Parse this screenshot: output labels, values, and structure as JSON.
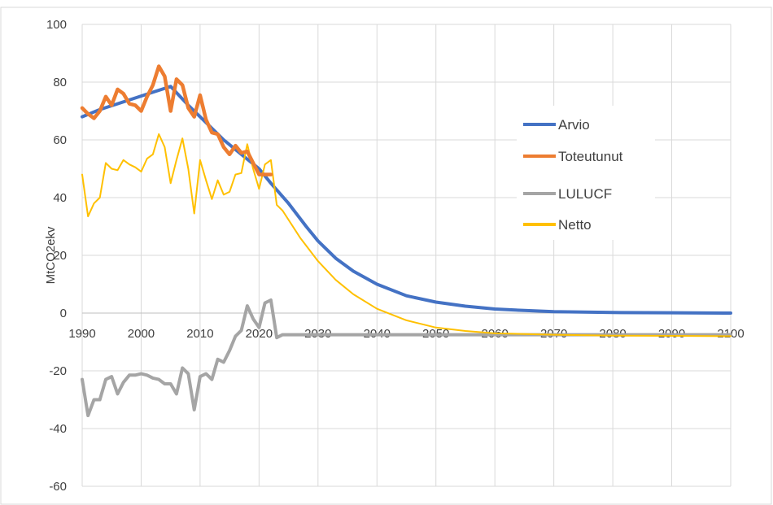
{
  "chart_data": {
    "type": "line",
    "title": "",
    "xlabel": "",
    "ylabel": "MtCO2ekv",
    "xlim": [
      1990,
      2100
    ],
    "ylim": [
      -60,
      100
    ],
    "x_ticks": [
      1990,
      2000,
      2010,
      2020,
      2030,
      2040,
      2050,
      2060,
      2070,
      2080,
      2090,
      2100
    ],
    "y_ticks": [
      -60,
      -40,
      -20,
      0,
      20,
      40,
      60,
      80,
      100
    ],
    "grid": true,
    "legend_position": "right",
    "series": [
      {
        "name": "Arvio",
        "color": "#4472C4",
        "points": [
          [
            1990,
            68
          ],
          [
            1993,
            70.5
          ],
          [
            1996,
            72.5
          ],
          [
            1999,
            74.5
          ],
          [
            2002,
            76.5
          ],
          [
            2005,
            78.5
          ],
          [
            2008,
            72
          ],
          [
            2011,
            66
          ],
          [
            2014,
            60
          ],
          [
            2017,
            55
          ],
          [
            2020,
            50
          ],
          [
            2022,
            45
          ],
          [
            2025,
            38
          ],
          [
            2028,
            30
          ],
          [
            2030,
            25
          ],
          [
            2033,
            19
          ],
          [
            2036,
            14.5
          ],
          [
            2040,
            10
          ],
          [
            2045,
            6
          ],
          [
            2050,
            3.8
          ],
          [
            2055,
            2.4
          ],
          [
            2060,
            1.4
          ],
          [
            2065,
            0.9
          ],
          [
            2070,
            0.5
          ],
          [
            2080,
            0.2
          ],
          [
            2090,
            0.1
          ],
          [
            2100,
            0
          ]
        ]
      },
      {
        "name": "Toteutunut",
        "color": "#ED7D31",
        "points": [
          [
            1990,
            71
          ],
          [
            1991,
            69
          ],
          [
            1992,
            67.5
          ],
          [
            1993,
            70
          ],
          [
            1994,
            75
          ],
          [
            1995,
            72
          ],
          [
            1996,
            77.5
          ],
          [
            1997,
            76
          ],
          [
            1998,
            72.5
          ],
          [
            1999,
            72
          ],
          [
            2000,
            70
          ],
          [
            2001,
            75
          ],
          [
            2002,
            79
          ],
          [
            2003,
            85.5
          ],
          [
            2004,
            82
          ],
          [
            2005,
            70
          ],
          [
            2006,
            81
          ],
          [
            2007,
            79
          ],
          [
            2008,
            71
          ],
          [
            2009,
            68
          ],
          [
            2010,
            75.5
          ],
          [
            2011,
            67
          ],
          [
            2012,
            62.5
          ],
          [
            2013,
            62
          ],
          [
            2014,
            57.5
          ],
          [
            2015,
            55
          ],
          [
            2016,
            58
          ],
          [
            2017,
            55.5
          ],
          [
            2018,
            56
          ],
          [
            2019,
            52
          ],
          [
            2020,
            48
          ],
          [
            2021,
            48
          ],
          [
            2022,
            48
          ]
        ]
      },
      {
        "name": "LULUCF",
        "color": "#A5A5A5",
        "points": [
          [
            1990,
            -23
          ],
          [
            1991,
            -35.5
          ],
          [
            1992,
            -30
          ],
          [
            1993,
            -30
          ],
          [
            1994,
            -23
          ],
          [
            1995,
            -22
          ],
          [
            1996,
            -28
          ],
          [
            1997,
            -24
          ],
          [
            1998,
            -21.5
          ],
          [
            1999,
            -21.5
          ],
          [
            2000,
            -21
          ],
          [
            2001,
            -21.5
          ],
          [
            2002,
            -22.5
          ],
          [
            2003,
            -23
          ],
          [
            2004,
            -24.5
          ],
          [
            2005,
            -24.5
          ],
          [
            2006,
            -28
          ],
          [
            2007,
            -19
          ],
          [
            2008,
            -21
          ],
          [
            2009,
            -33.5
          ],
          [
            2010,
            -22
          ],
          [
            2011,
            -21
          ],
          [
            2012,
            -23
          ],
          [
            2013,
            -16
          ],
          [
            2014,
            -17
          ],
          [
            2015,
            -13
          ],
          [
            2016,
            -8
          ],
          [
            2017,
            -6
          ],
          [
            2018,
            2.5
          ],
          [
            2019,
            -2
          ],
          [
            2020,
            -5
          ],
          [
            2021,
            3.5
          ],
          [
            2022,
            4.5
          ],
          [
            2023,
            -8.5
          ],
          [
            2024,
            -7.5
          ],
          [
            2030,
            -7.5
          ],
          [
            2040,
            -7.5
          ],
          [
            2050,
            -7.5
          ],
          [
            2060,
            -7.5
          ],
          [
            2070,
            -7.5
          ],
          [
            2080,
            -7.5
          ],
          [
            2090,
            -7.5
          ],
          [
            2100,
            -7.5
          ]
        ]
      },
      {
        "name": "Netto",
        "color": "#FFC000",
        "points": [
          [
            1990,
            48
          ],
          [
            1991,
            33.5
          ],
          [
            1992,
            38
          ],
          [
            1993,
            40
          ],
          [
            1994,
            52
          ],
          [
            1995,
            50
          ],
          [
            1996,
            49.5
          ],
          [
            1997,
            53
          ],
          [
            1998,
            51.5
          ],
          [
            1999,
            50.5
          ],
          [
            2000,
            49
          ],
          [
            2001,
            53.5
          ],
          [
            2002,
            55
          ],
          [
            2003,
            62
          ],
          [
            2004,
            57.5
          ],
          [
            2005,
            45
          ],
          [
            2006,
            53
          ],
          [
            2007,
            60.5
          ],
          [
            2008,
            50
          ],
          [
            2009,
            34.5
          ],
          [
            2010,
            53
          ],
          [
            2011,
            46
          ],
          [
            2012,
            39.5
          ],
          [
            2013,
            46
          ],
          [
            2014,
            41
          ],
          [
            2015,
            42
          ],
          [
            2016,
            48
          ],
          [
            2017,
            48.5
          ],
          [
            2018,
            58.5
          ],
          [
            2019,
            50
          ],
          [
            2020,
            43
          ],
          [
            2021,
            51.5
          ],
          [
            2022,
            53
          ],
          [
            2023,
            37.5
          ],
          [
            2024,
            35.5
          ],
          [
            2027,
            26
          ],
          [
            2030,
            18
          ],
          [
            2033,
            11.5
          ],
          [
            2036,
            6.5
          ],
          [
            2040,
            1.5
          ],
          [
            2045,
            -2.5
          ],
          [
            2050,
            -5
          ],
          [
            2055,
            -6.2
          ],
          [
            2060,
            -7
          ],
          [
            2070,
            -7.5
          ],
          [
            2080,
            -7.8
          ],
          [
            2090,
            -7.9
          ],
          [
            2100,
            -8
          ]
        ]
      }
    ]
  }
}
